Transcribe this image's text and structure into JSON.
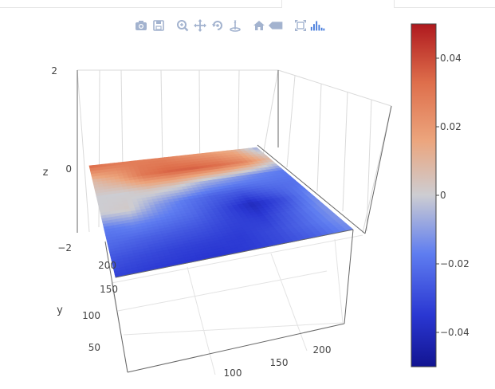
{
  "modebar": {
    "buttons": [
      {
        "name": "camera-icon"
      },
      {
        "name": "save-icon"
      },
      {
        "name": "zoom-icon"
      },
      {
        "name": "pan-icon"
      },
      {
        "name": "orbit-rotation-icon"
      },
      {
        "name": "turntable-rotation-icon"
      },
      {
        "name": "home-icon"
      },
      {
        "name": "tag-hover-icon"
      },
      {
        "name": "autoscale-icon"
      },
      {
        "name": "plotly-logo-icon"
      }
    ],
    "icon_color": "#a3b3cf",
    "active_color": "#447adb"
  },
  "chart_data": {
    "type": "surface",
    "zaxis": {
      "label": "z",
      "ticks": [
        "2",
        "0",
        "−2"
      ],
      "range": [
        -2,
        2
      ]
    },
    "yaxis": {
      "label": "y",
      "ticks": [
        "200",
        "150",
        "100",
        "50"
      ]
    },
    "xaxis": {
      "label": "",
      "ticks": [
        "100",
        "150",
        "200"
      ]
    },
    "colorscale": "coolwarm",
    "colorbar": {
      "ticks": [
        "0.04",
        "0.02",
        "0",
        "−0.02",
        "−0.04"
      ],
      "range": [
        -0.05,
        0.05
      ]
    },
    "z_grid": [
      [
        0.035,
        0.03,
        0.028,
        0.027,
        0.022,
        0.018,
        0.012,
        -0.008
      ],
      [
        0.008,
        0.016,
        0.03,
        0.035,
        0.036,
        0.033,
        0.026,
        0.008
      ],
      [
        0.0,
        0.0,
        0.004,
        0.002,
        -0.006,
        -0.01,
        -0.015,
        -0.018
      ],
      [
        0.0,
        0.002,
        -0.01,
        -0.018,
        -0.024,
        -0.026,
        -0.022,
        -0.02
      ],
      [
        -0.018,
        -0.015,
        -0.018,
        -0.022,
        -0.03,
        -0.04,
        -0.03,
        -0.014
      ],
      [
        -0.022,
        -0.024,
        -0.026,
        -0.028,
        -0.032,
        -0.034,
        -0.024,
        -0.012
      ],
      [
        -0.028,
        -0.03,
        -0.032,
        -0.033,
        -0.034,
        -0.03,
        -0.022,
        -0.012
      ],
      [
        -0.032,
        -0.034,
        -0.035,
        -0.036,
        -0.034,
        -0.03,
        -0.024,
        -0.014
      ]
    ]
  }
}
